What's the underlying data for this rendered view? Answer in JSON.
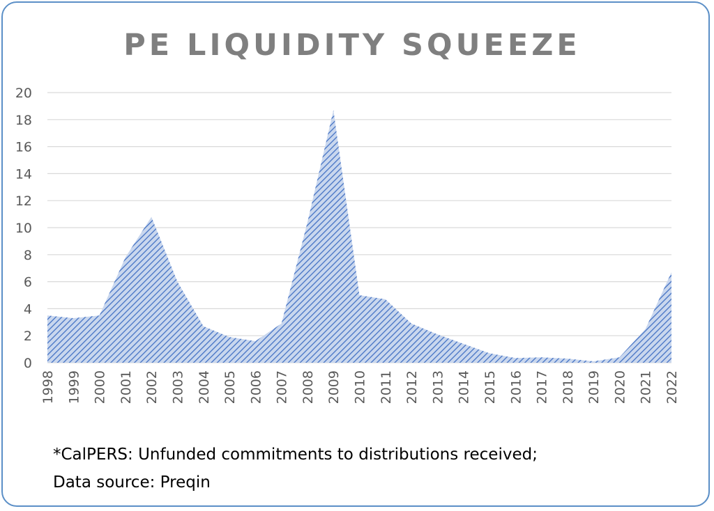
{
  "title": "PE LIQUIDITY SQUEEZE",
  "footnote_lines": [
    "*CalPERS: Unfunded commitments to distributions received;",
    "Data source: Preqin"
  ],
  "chart_data": {
    "type": "area",
    "title": "PE LIQUIDITY SQUEEZE",
    "xlabel": "",
    "ylabel": "",
    "x": [
      "1998",
      "1999",
      "2000",
      "2001",
      "2002",
      "2003",
      "2004",
      "2005",
      "2006",
      "2007",
      "2008",
      "2009",
      "2010",
      "2011",
      "2012",
      "2013",
      "2014",
      "2015",
      "2016",
      "2017",
      "2018",
      "2019",
      "2020",
      "2021",
      "2022"
    ],
    "series": [
      {
        "values": [
          3.5,
          3.3,
          3.5,
          7.8,
          10.8,
          6.0,
          2.7,
          1.9,
          1.6,
          2.9,
          10.4,
          18.7,
          5.0,
          4.7,
          2.9,
          2.1,
          1.4,
          0.7,
          0.35,
          0.4,
          0.3,
          0.1,
          0.4,
          2.5,
          6.7
        ],
        "color": "#4472c4"
      }
    ],
    "ylim": [
      0,
      20
    ],
    "yticks": [
      0,
      2,
      4,
      6,
      8,
      10,
      12,
      14,
      16,
      18,
      20
    ],
    "grid": true,
    "fill_pattern": "diagonal-hatch",
    "colors": {
      "fill": "#b4c7e7",
      "hatch": "#4472c4",
      "grid": "#d9d9d9",
      "tick_text": "#595959",
      "title": "#7f7f7f",
      "frame": "#5b8fc7"
    }
  }
}
